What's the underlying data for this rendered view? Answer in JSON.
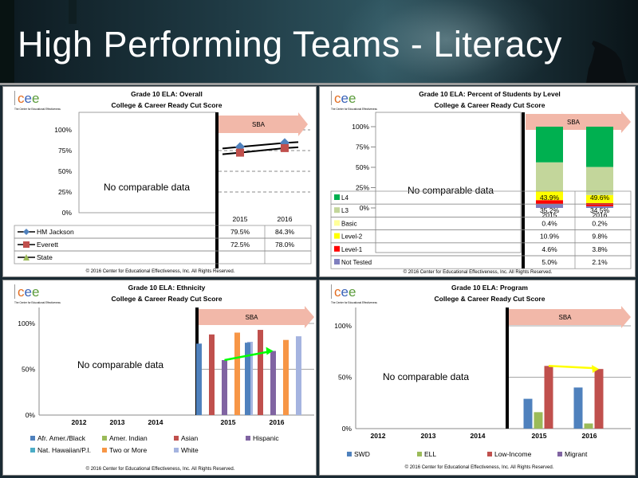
{
  "page": {
    "title": "High Performing Teams - Literacy"
  },
  "logo": {
    "text": "cee",
    "tagline": "The Center for Educational Effectiveness"
  },
  "copyright": "© 2016 Center for Educational Effectiveness, Inc. All Rights Reserved.",
  "colors": {
    "blue": "#4f81bd",
    "red": "#c0504d",
    "green": "#9bbb59",
    "purple": "#8064a2",
    "teal": "#4bacc6",
    "orange": "#f79646",
    "lavender": "#a5b4e0",
    "l4": "#00b050",
    "l3": "#c3d69b",
    "basic": "#ffff99",
    "level2": "#ffff00",
    "level1": "#ff0000",
    "not_tested": "#7f7fbf",
    "trend": "#00ff00",
    "trend_yellow": "#ffff00",
    "arrow": "#f2b8a9"
  },
  "chart_data": [
    {
      "type": "line",
      "title": "Grade 10 ELA: Overall",
      "subtitle": "College & Career Ready Cut Score",
      "banner": "SBA",
      "no_data_text": "No comparable data",
      "y_ticks": [
        "100%",
        "75%",
        "50%",
        "25%",
        "0%"
      ],
      "ylim": [
        0,
        100
      ],
      "categories": [
        "2015",
        "2016"
      ],
      "series": [
        {
          "name": "HM Jackson",
          "values": [
            79.5,
            84.3
          ],
          "labels": [
            "79.5%",
            "84.3%"
          ]
        },
        {
          "name": "Everett",
          "values": [
            72.5,
            78.0
          ],
          "labels": [
            "72.5%",
            "78.0%"
          ]
        },
        {
          "name": "State",
          "values": [
            null,
            null
          ],
          "labels": [
            "",
            ""
          ]
        }
      ]
    },
    {
      "type": "bar",
      "stacked": true,
      "title": "Grade 10 ELA: Percent of Students by Level",
      "subtitle": "College & Career Ready Cut Score",
      "banner": "SBA",
      "no_data_text": "No comparable data",
      "y_ticks": [
        "100%",
        "75%",
        "50%",
        "25%",
        "0%"
      ],
      "ylim": [
        0,
        100
      ],
      "categories": [
        "2015",
        "2016"
      ],
      "series": [
        {
          "name": "L4",
          "values": [
            43.9,
            49.6
          ],
          "labels": [
            "43.9%",
            "49.6%"
          ]
        },
        {
          "name": "L3",
          "values": [
            35.2,
            34.5
          ],
          "labels": [
            "35.2%",
            "34.5%"
          ]
        },
        {
          "name": "Basic",
          "values": [
            0.4,
            0.2
          ],
          "labels": [
            "0.4%",
            "0.2%"
          ]
        },
        {
          "name": "Level-2",
          "values": [
            10.9,
            9.8
          ],
          "labels": [
            "10.9%",
            "9.8%"
          ]
        },
        {
          "name": "Level-1",
          "values": [
            4.6,
            3.8
          ],
          "labels": [
            "4.6%",
            "3.8%"
          ]
        },
        {
          "name": "Not Tested",
          "values": [
            5.0,
            2.1
          ],
          "labels": [
            "5.0%",
            "2.1%"
          ]
        }
      ]
    },
    {
      "type": "bar",
      "title": "Grade 10 ELA: Ethnicity",
      "subtitle": "College & Career Ready Cut Score",
      "banner": "SBA",
      "no_data_text": "No comparable data",
      "y_ticks": [
        "100%",
        "50%",
        "0%"
      ],
      "ylim": [
        0,
        100
      ],
      "categories": [
        "2012",
        "2013",
        "2014",
        "2015",
        "2016"
      ],
      "series": [
        {
          "name": "Afr. Amer./Black",
          "values": [
            null,
            null,
            null,
            78,
            79
          ]
        },
        {
          "name": "Amer. Indian",
          "values": [
            null,
            null,
            null,
            null,
            null
          ]
        },
        {
          "name": "Asian",
          "values": [
            null,
            null,
            null,
            88,
            93
          ]
        },
        {
          "name": "Hispanic",
          "values": [
            null,
            null,
            null,
            60,
            70
          ]
        },
        {
          "name": "Nat. Hawaiian/P.I.",
          "values": [
            null,
            null,
            null,
            null,
            null
          ]
        },
        {
          "name": "Two or More",
          "values": [
            null,
            null,
            null,
            90,
            82
          ]
        },
        {
          "name": "White",
          "values": [
            null,
            null,
            null,
            80,
            86
          ]
        }
      ],
      "trend": {
        "series": "Hispanic",
        "from": 60,
        "to": 70
      }
    },
    {
      "type": "bar",
      "title": "Grade 10 ELA: Program",
      "subtitle": "College & Career Ready Cut Score",
      "banner": "SBA",
      "no_data_text": "No comparable data",
      "y_ticks": [
        "100%",
        "50%",
        "0%"
      ],
      "ylim": [
        0,
        100
      ],
      "categories": [
        "2012",
        "2013",
        "2014",
        "2015",
        "2016"
      ],
      "series": [
        {
          "name": "SWD",
          "values": [
            null,
            null,
            null,
            29,
            40
          ]
        },
        {
          "name": "ELL",
          "values": [
            null,
            null,
            null,
            16,
            5
          ]
        },
        {
          "name": "Low-Income",
          "values": [
            null,
            null,
            null,
            61,
            58
          ]
        },
        {
          "name": "Migrant",
          "values": [
            null,
            null,
            null,
            null,
            null
          ]
        }
      ],
      "trend": {
        "series": "Low-Income",
        "from": 61,
        "to": 58
      }
    }
  ]
}
